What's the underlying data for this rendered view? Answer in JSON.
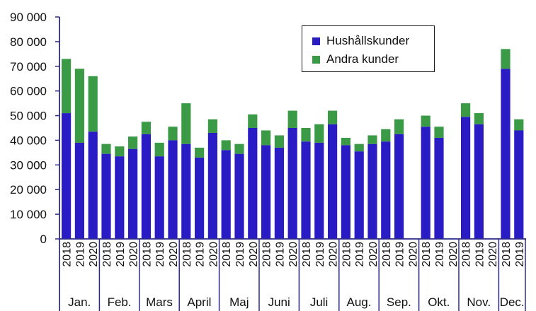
{
  "chart_data": {
    "type": "bar",
    "stacked": true,
    "ylim": [
      0,
      90000
    ],
    "yticks": [
      "0",
      "10 000",
      "20 000",
      "30 000",
      "40 000",
      "50 000",
      "60 000",
      "70 000",
      "80 000",
      "90 000"
    ],
    "legend_placement": "top-right",
    "grid": false,
    "months": [
      {
        "label": "Jan.",
        "years": [
          "2018",
          "2019",
          "2020"
        ]
      },
      {
        "label": "Feb.",
        "years": [
          "2018",
          "2019",
          "2020"
        ]
      },
      {
        "label": "Mars",
        "years": [
          "2018",
          "2019",
          "2020"
        ]
      },
      {
        "label": "April",
        "years": [
          "2018",
          "2019",
          "2020"
        ]
      },
      {
        "label": "Maj",
        "years": [
          "2018",
          "2019",
          "2020"
        ]
      },
      {
        "label": "Juni",
        "years": [
          "2018",
          "2019",
          "2020"
        ]
      },
      {
        "label": "Juli",
        "years": [
          "2018",
          "2019",
          "2020"
        ]
      },
      {
        "label": "Aug.",
        "years": [
          "2018",
          "2019",
          "2020"
        ]
      },
      {
        "label": "Sep.",
        "years": [
          "2018",
          "2019",
          "2020"
        ]
      },
      {
        "label": "Okt.",
        "years": [
          "2018",
          "2019",
          "2020"
        ]
      },
      {
        "label": "Nov.",
        "years": [
          "2018",
          "2019",
          "2020"
        ]
      },
      {
        "label": "Dec.",
        "years": [
          "2018",
          "2019"
        ]
      }
    ],
    "series": [
      {
        "name": "Hushållskunder",
        "color": "#2a1cc4",
        "values": [
          51000,
          39000,
          43500,
          34500,
          33500,
          36500,
          42500,
          33500,
          40000,
          38500,
          33000,
          43000,
          36000,
          34500,
          45000,
          38000,
          37000,
          45000,
          39500,
          39000,
          46500,
          38000,
          35500,
          38500,
          39500,
          42500,
          null,
          45500,
          41000,
          null,
          49500,
          46500,
          null,
          69000,
          44000
        ]
      },
      {
        "name": "Andra kunder",
        "color": "#3a9a46",
        "values": [
          22000,
          30000,
          22500,
          4000,
          4000,
          5000,
          5000,
          5500,
          5500,
          16500,
          4000,
          5500,
          4000,
          4000,
          5500,
          6000,
          5000,
          7000,
          5500,
          7500,
          5500,
          3000,
          3000,
          3500,
          5000,
          6000,
          null,
          4500,
          4500,
          null,
          5500,
          4500,
          null,
          8000,
          4500
        ]
      }
    ]
  }
}
